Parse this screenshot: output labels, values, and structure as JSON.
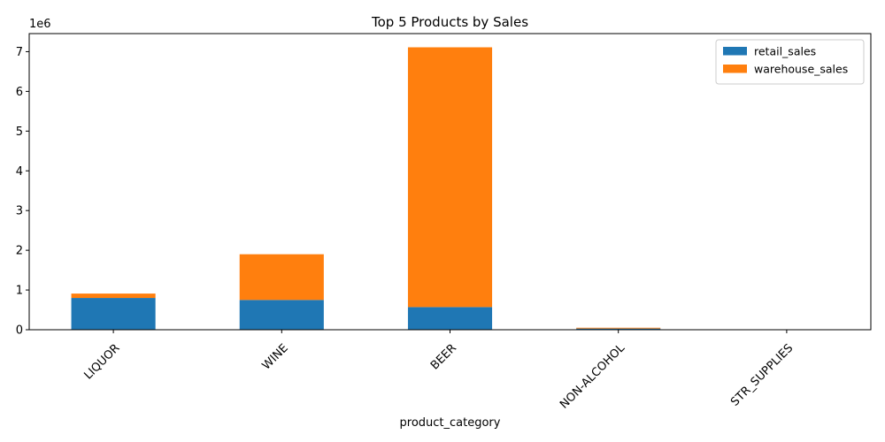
{
  "chart_data": {
    "type": "bar",
    "stacked": true,
    "title": "Top 5 Products by Sales",
    "xlabel": "product_category",
    "ylabel": "",
    "y_offset_label": "1e6",
    "y_scale_factor": 1000000,
    "categories": [
      "LIQUOR",
      "WINE",
      "BEER",
      "NON-ALCOHOL",
      "STR_SUPPLIES"
    ],
    "series": [
      {
        "name": "retail_sales",
        "color": "#1f77b4",
        "values": [
          800000,
          750000,
          570000,
          30000,
          1000
        ]
      },
      {
        "name": "warehouse_sales",
        "color": "#ff7f0e",
        "values": [
          110000,
          1150000,
          6540000,
          20000,
          0
        ]
      }
    ],
    "yticks": [
      0,
      1000000,
      2000000,
      3000000,
      4000000,
      5000000,
      6000000,
      7000000
    ],
    "ytick_labels": [
      "0",
      "1",
      "2",
      "3",
      "4",
      "5",
      "6",
      "7"
    ],
    "ylim": [
      0,
      7455000
    ],
    "grid": false,
    "legend_position": "top-right"
  }
}
